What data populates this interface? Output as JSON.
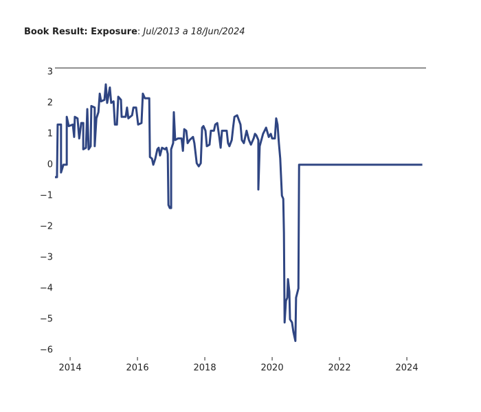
{
  "chart_data": {
    "type": "line",
    "title": "Book Result: Exposure",
    "title_separator": ": ",
    "subtitle": "Jul/2013 a 18/Jun/2024",
    "x": [
      2013.55,
      2013.61,
      2013.63,
      2013.73,
      2013.73,
      2013.8,
      2013.9,
      2013.9,
      2013.96,
      2014.08,
      2014.12,
      2014.14,
      2014.22,
      2014.27,
      2014.33,
      2014.39,
      2014.39,
      2014.47,
      2014.51,
      2014.55,
      2014.61,
      2014.63,
      2014.73,
      2014.73,
      2014.78,
      2014.84,
      2014.88,
      2014.92,
      2015.02,
      2015.06,
      2015.1,
      2015.18,
      2015.22,
      2015.29,
      2015.33,
      2015.39,
      2015.43,
      2015.51,
      2015.53,
      2015.65,
      2015.69,
      2015.73,
      2015.84,
      2015.88,
      2015.96,
      2016.02,
      2016.12,
      2016.16,
      2016.22,
      2016.35,
      2016.37,
      2016.43,
      2016.47,
      2016.53,
      2016.59,
      2016.63,
      2016.67,
      2016.73,
      2016.82,
      2016.86,
      2016.9,
      2016.92,
      2016.96,
      2017.0,
      2017.0,
      2017.06,
      2017.08,
      2017.12,
      2017.2,
      2017.31,
      2017.35,
      2017.39,
      2017.45,
      2017.49,
      2017.55,
      2017.65,
      2017.69,
      2017.76,
      2017.82,
      2017.88,
      2017.92,
      2017.96,
      2018.02,
      2018.06,
      2018.14,
      2018.18,
      2018.27,
      2018.31,
      2018.37,
      2018.43,
      2018.47,
      2018.51,
      2018.65,
      2018.69,
      2018.73,
      2018.8,
      2018.84,
      2018.88,
      2018.96,
      2019.06,
      2019.1,
      2019.16,
      2019.24,
      2019.31,
      2019.37,
      2019.45,
      2019.49,
      2019.53,
      2019.59,
      2019.59,
      2019.63,
      2019.73,
      2019.82,
      2019.9,
      2019.96,
      2020.0,
      2020.08,
      2020.12,
      2020.16,
      2020.2,
      2020.24,
      2020.29,
      2020.33,
      2020.35,
      2020.37,
      2020.41,
      2020.45,
      2020.47,
      2020.51,
      2020.53,
      2020.59,
      2020.63,
      2020.67,
      2020.69,
      2020.71,
      2020.78,
      2020.8,
      2024.46
    ],
    "series": [
      {
        "color": "#2f4582",
        "values": [
          -0.4,
          -0.4,
          1.3,
          1.3,
          -0.25,
          0,
          0,
          1.55,
          1.25,
          1.3,
          0.9,
          1.55,
          1.5,
          0.85,
          1.35,
          1.35,
          0.5,
          0.55,
          1.8,
          0.5,
          0.6,
          1.9,
          1.85,
          0.6,
          1.5,
          1.7,
          2.3,
          2.05,
          2.1,
          2.6,
          2.0,
          2.5,
          2.0,
          2.05,
          1.3,
          1.3,
          2.2,
          2.1,
          1.55,
          1.55,
          1.85,
          1.5,
          1.6,
          1.85,
          1.85,
          1.3,
          1.35,
          2.3,
          2.15,
          2.15,
          0.25,
          0.2,
          0,
          0.2,
          0.5,
          0.55,
          0.3,
          0.55,
          0.5,
          0.55,
          0.35,
          -1.3,
          -1.4,
          -1.4,
          0.5,
          0.7,
          1.7,
          0.8,
          0.85,
          0.85,
          0.45,
          1.15,
          1.1,
          0.7,
          0.8,
          0.9,
          0.7,
          0.05,
          -0.05,
          0.05,
          1.2,
          1.25,
          1.1,
          0.6,
          0.65,
          1.1,
          1.1,
          1.3,
          1.35,
          0.9,
          0.55,
          1.1,
          1.1,
          0.7,
          0.6,
          0.8,
          1.2,
          1.55,
          1.6,
          1.3,
          0.8,
          0.7,
          1.1,
          0.8,
          0.65,
          0.85,
          1.0,
          0.95,
          0.8,
          -0.8,
          0.6,
          1.0,
          1.2,
          0.9,
          1.0,
          0.85,
          0.85,
          1.5,
          1.3,
          0.7,
          0.2,
          -1.0,
          -1.1,
          -2.2,
          -5.1,
          -4.4,
          -4.3,
          -3.7,
          -4.1,
          -5.0,
          -5.1,
          -5.4,
          -5.6,
          -5.7,
          -4.3,
          -4.0,
          0,
          0
        ]
      }
    ],
    "xlim": [
      2013.55,
      2024.57
    ],
    "xticks": [
      2014,
      2016,
      2018,
      2020,
      2022,
      2024
    ],
    "ylim": [
      -6.22,
      3.13
    ],
    "yticks": [
      {
        "value": -6,
        "label": "−6"
      },
      {
        "value": -5,
        "label": "−5"
      },
      {
        "value": -4,
        "label": "−4"
      },
      {
        "value": -3,
        "label": "−3"
      },
      {
        "value": -2,
        "label": "−2"
      },
      {
        "value": -1,
        "label": "−1"
      },
      0,
      1,
      2,
      3
    ],
    "grid": false
  }
}
